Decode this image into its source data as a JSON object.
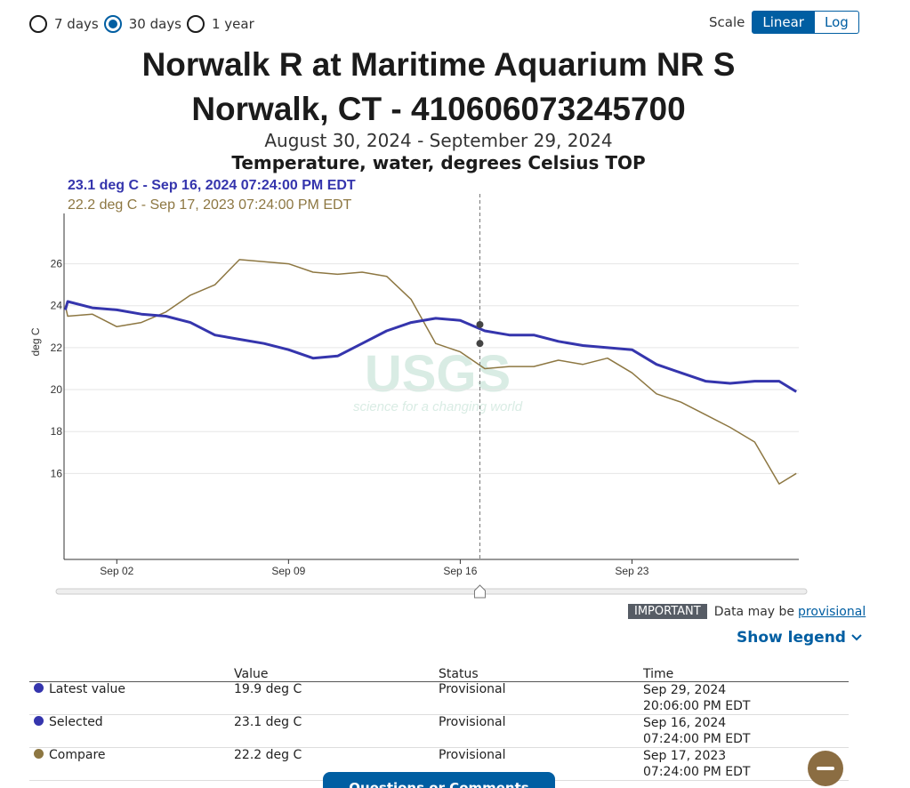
{
  "controls": {
    "periods": [
      "7 days",
      "30 days",
      "1 year"
    ],
    "selected_period": 1,
    "scale_label": "Scale",
    "scales": [
      "Linear",
      "Log"
    ],
    "selected_scale": 0
  },
  "chart_data": {
    "type": "line",
    "title": "Norwalk R at Maritime Aquarium NR S Norwalk, CT - 410606073245700",
    "subtitle": "August 30, 2024 - September 29, 2024",
    "parameter": "Temperature, water, degrees Celsius TOP",
    "hover_labels": [
      "23.1 deg C - Sep 16, 2024 07:24:00 PM EDT",
      "22.2 deg C - Sep 17, 2023 07:24:00 PM EDT"
    ],
    "ylabel": "deg C",
    "watermark": [
      "USGS",
      "science for a changing world"
    ],
    "x": [
      -0.1,
      0,
      1,
      2,
      3,
      4,
      5,
      6,
      7,
      8,
      9,
      10,
      11,
      12,
      13,
      14,
      15,
      16,
      17,
      18,
      19,
      20,
      21,
      22,
      23,
      24,
      25,
      26,
      27,
      28,
      29,
      29.7
    ],
    "series": [
      {
        "name": "Latest value",
        "color": "#3535ad",
        "values": [
          23.8,
          24.2,
          23.9,
          23.8,
          23.6,
          23.5,
          23.2,
          22.6,
          22.4,
          22.2,
          21.9,
          21.5,
          21.6,
          22.2,
          22.8,
          23.2,
          23.4,
          23.3,
          22.8,
          22.6,
          22.6,
          22.3,
          22.1,
          22.0,
          21.9,
          21.2,
          20.8,
          20.4,
          20.3,
          20.4,
          20.4,
          19.9
        ]
      },
      {
        "name": "Compare",
        "color": "#8d7742",
        "values": [
          24.0,
          23.5,
          23.6,
          23.0,
          23.2,
          23.7,
          24.5,
          25.0,
          26.2,
          26.1,
          26.0,
          25.6,
          25.5,
          25.6,
          25.4,
          24.3,
          22.2,
          21.8,
          21.0,
          21.1,
          21.1,
          21.4,
          21.2,
          21.5,
          20.8,
          19.8,
          19.4,
          18.8,
          18.2,
          17.5,
          15.5,
          16.0
        ]
      }
    ],
    "selection": {
      "x": 16.8,
      "values": [
        23.1,
        22.2
      ]
    },
    "xlim": [
      -0.15,
      29.8
    ],
    "ylim": [
      11.9,
      28.4
    ],
    "xticks": [
      {
        "value": 2,
        "label": "Sep 02"
      },
      {
        "value": 9,
        "label": "Sep 09"
      },
      {
        "value": 16,
        "label": "Sep 16"
      },
      {
        "value": 23,
        "label": "Sep 23"
      }
    ],
    "yticks": [
      16,
      18,
      20,
      22,
      24,
      26
    ],
    "grid": true
  },
  "notice": {
    "badge": "IMPORTANT",
    "text": "Data may be",
    "link": "provisional"
  },
  "show_legend": "Show legend",
  "table": {
    "columns": [
      "Value",
      "Status",
      "Time"
    ],
    "rows": [
      {
        "name": "Latest value",
        "color": "#3535ad",
        "value": "19.9 deg C",
        "status": "Provisional",
        "time": [
          "Sep 29, 2024",
          "20:06:00 PM EDT"
        ]
      },
      {
        "name": "Selected",
        "color": "#3535ad",
        "value": "23.1 deg C",
        "status": "Provisional",
        "time": [
          "Sep 16, 2024",
          "07:24:00 PM EDT"
        ]
      },
      {
        "name": "Compare",
        "color": "#8d7742",
        "value": "22.2 deg C",
        "status": "Provisional",
        "time": [
          "Sep 17, 2023",
          "07:24:00 PM EDT"
        ]
      }
    ]
  },
  "button": "Questions or Comments"
}
